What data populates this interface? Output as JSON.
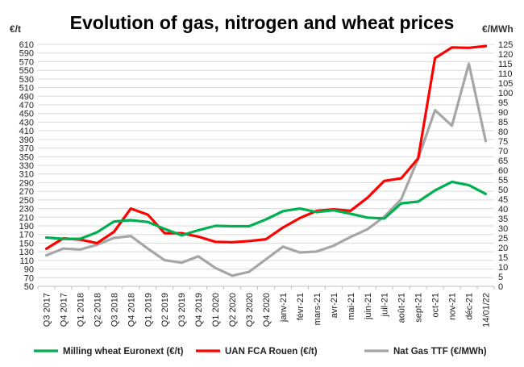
{
  "chart_data": {
    "type": "line",
    "title": "Evolution of gas, nitrogen and wheat prices",
    "ylabel_left": "€/t",
    "ylabel_right": "€/MWh",
    "ylim_left": [
      50,
      610
    ],
    "ylim_right": [
      0,
      125
    ],
    "yticks_left": [
      "50",
      "70",
      "90",
      "110",
      "130",
      "150",
      "170",
      "190",
      "210",
      "230",
      "250",
      "270",
      "290",
      "310",
      "330",
      "350",
      "370",
      "390",
      "410",
      "430",
      "450",
      "470",
      "490",
      "510",
      "530",
      "550",
      "570",
      "590",
      "610"
    ],
    "yticks_right": [
      "0",
      "5",
      "10",
      "15",
      "20",
      "25",
      "30",
      "35",
      "40",
      "45",
      "50",
      "55",
      "60",
      "65",
      "70",
      "75",
      "80",
      "85",
      "90",
      "95",
      "100",
      "105",
      "110",
      "115",
      "120",
      "125"
    ],
    "categories": [
      "Q3 2017",
      "Q4 2017",
      "Q1 2018",
      "Q2 2018",
      "Q3 2018",
      "Q4 2018",
      "Q1 2019",
      "Q2 2019",
      "Q3 2019",
      "Q4 2019",
      "Q1 2020",
      "Q2 2020",
      "Q3 2020",
      "Q4 2020",
      "janv-21",
      "févr-21",
      "mars-21",
      "avr-21",
      "mai-21",
      "juin-21",
      "juil-21",
      "août-21",
      "sept-21",
      "oct-21",
      "nov-21",
      "déc-21",
      "14/01/22"
    ],
    "grid": true,
    "legend_position": "bottom",
    "series": [
      {
        "name": "Milling wheat Euronext (€/t)",
        "axis": "left",
        "color": "#00b050",
        "values": [
          163,
          160,
          160,
          175,
          200,
          203,
          199,
          183,
          168,
          180,
          190,
          189,
          189,
          205,
          224,
          230,
          222,
          226,
          218,
          209,
          207,
          242,
          246,
          272,
          292,
          284,
          264
        ]
      },
      {
        "name": "UAN FCA Rouen (€/t)",
        "axis": "left",
        "color": "#ff0000",
        "values": [
          137,
          161,
          158,
          150,
          176,
          230,
          216,
          173,
          173,
          165,
          153,
          152,
          155,
          159,
          186,
          208,
          225,
          228,
          225,
          255,
          294,
          300,
          346,
          578,
          603,
          602,
          606
        ]
      },
      {
        "name": "Nat Gas TTF (€/MWh)",
        "axis": "right",
        "color": "#a6a6a6",
        "values": [
          16,
          19.5,
          19,
          21.5,
          25,
          26,
          19.5,
          13.5,
          12.2,
          15.5,
          9.5,
          5.5,
          7.5,
          14,
          20.5,
          17.5,
          18,
          21,
          25.5,
          29.5,
          36,
          45,
          66,
          91,
          83,
          115,
          75
        ]
      }
    ]
  }
}
